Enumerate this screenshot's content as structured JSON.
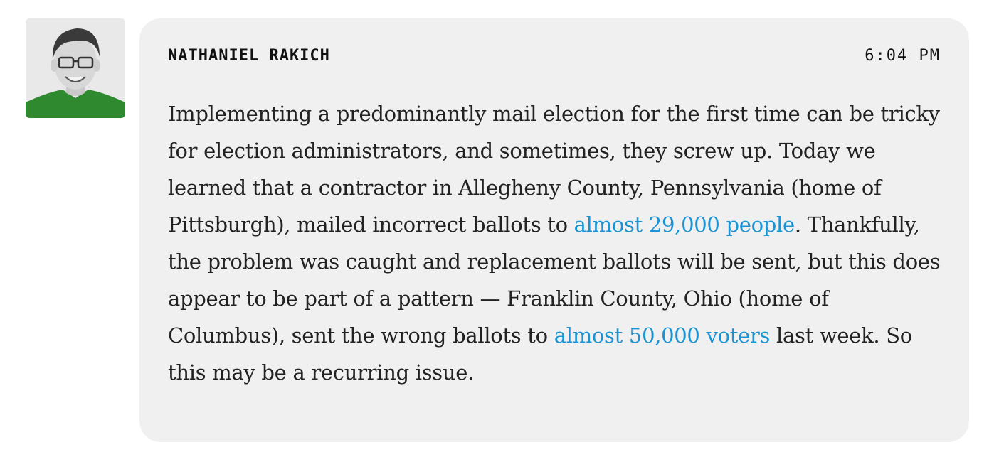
{
  "post": {
    "author": "NATHANIEL RAKICH",
    "time": "6:04 PM",
    "avatar_icon": "person-portrait-icon",
    "colors": {
      "bubble_bg": "#f0f0f0",
      "link": "#1a94d4",
      "text": "#222222",
      "shirt": "#2f8a2f"
    },
    "body": {
      "p1": "Implementing a predominantly mail election for the first time can be tricky for election administrators, and sometimes, they screw up. Today we learned that a contractor in Allegheny County, Pennsylvania (home of Pittsburgh), mailed incorrect ballots to ",
      "link1": "almost 29,000 people",
      "p2": ". Thankfully, the problem was caught and replacement ballots will be sent, but this does appear to be part of a pattern — Franklin County, Ohio (home of Columbus), sent the wrong ballots to ",
      "link2": "almost 50,000 voters",
      "p3": " last week. So this may be a recurring issue."
    }
  }
}
